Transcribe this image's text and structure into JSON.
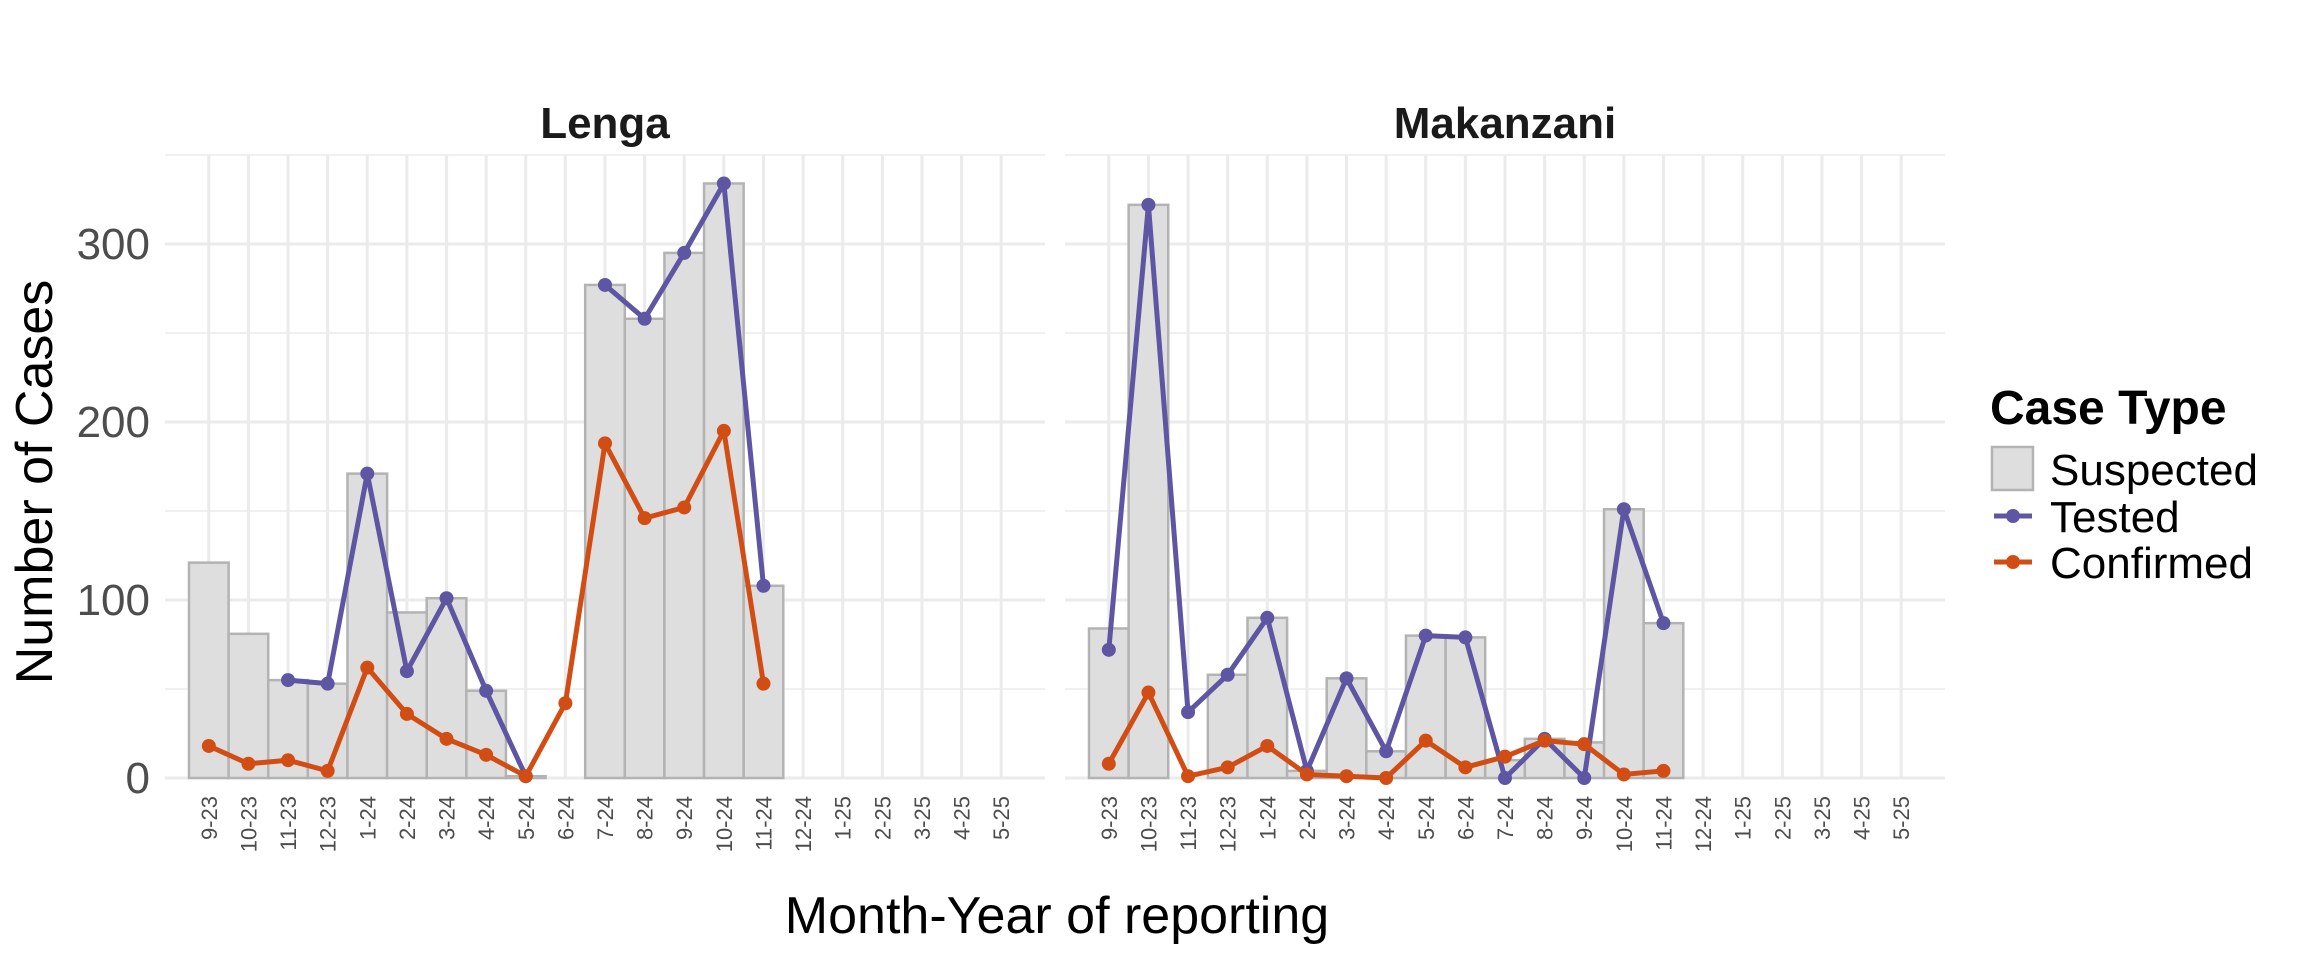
{
  "chart_data": {
    "type": "bar",
    "xlabel": "Month-Year of reporting",
    "ylabel": "Number of Cases",
    "ylim": [
      0,
      350
    ],
    "yticks": [
      "0",
      "100",
      "200",
      "300"
    ],
    "categories": [
      "9-23",
      "10-23",
      "11-23",
      "12-23",
      "1-24",
      "2-24",
      "3-24",
      "4-24",
      "5-24",
      "6-24",
      "7-24",
      "8-24",
      "9-24",
      "10-24",
      "11-24",
      "12-24",
      "1-25",
      "2-25",
      "3-25",
      "4-25",
      "5-25"
    ],
    "grid": true,
    "legend_position": "right",
    "legend": {
      "title": "Case Type",
      "entries": [
        "Suspected",
        "Tested",
        "Confirmed"
      ]
    },
    "colors": {
      "Suspected": "#dedede",
      "Suspected_outline": "#b3b3b3",
      "Tested": "#5e55a3",
      "Confirmed": "#d24d14"
    },
    "panels": [
      {
        "title": "Lenga",
        "series": [
          {
            "name": "Suspected",
            "kind": "bar",
            "values": [
              121,
              81,
              55,
              53,
              171,
              93,
              101,
              49,
              1,
              null,
              277,
              258,
              295,
              334,
              108,
              null,
              null,
              null,
              null,
              null,
              null
            ]
          },
          {
            "name": "Tested",
            "kind": "line",
            "values": [
              null,
              null,
              55,
              53,
              171,
              60,
              101,
              49,
              1,
              null,
              277,
              258,
              295,
              334,
              108,
              null,
              null,
              null,
              null,
              null,
              null
            ]
          },
          {
            "name": "Confirmed",
            "kind": "line",
            "values": [
              18,
              8,
              10,
              4,
              62,
              36,
              22,
              13,
              1,
              42,
              188,
              146,
              152,
              195,
              53,
              null,
              null,
              null,
              null,
              null,
              null
            ]
          }
        ]
      },
      {
        "title": "Makanzani",
        "series": [
          {
            "name": "Suspected",
            "kind": "bar",
            "values": [
              84,
              322,
              null,
              58,
              90,
              4,
              56,
              15,
              80,
              79,
              10,
              22,
              20,
              151,
              87,
              null,
              null,
              null,
              null,
              null,
              null
            ]
          },
          {
            "name": "Tested",
            "kind": "line",
            "values": [
              72,
              322,
              37,
              58,
              90,
              4,
              56,
              15,
              80,
              79,
              0,
              22,
              0,
              151,
              87,
              null,
              null,
              null,
              null,
              null,
              null
            ]
          },
          {
            "name": "Confirmed",
            "kind": "line",
            "values": [
              8,
              48,
              1,
              6,
              18,
              2,
              1,
              0,
              21,
              6,
              12,
              21,
              19,
              2,
              4,
              null,
              null,
              null,
              null,
              null,
              null
            ]
          }
        ]
      }
    ]
  }
}
